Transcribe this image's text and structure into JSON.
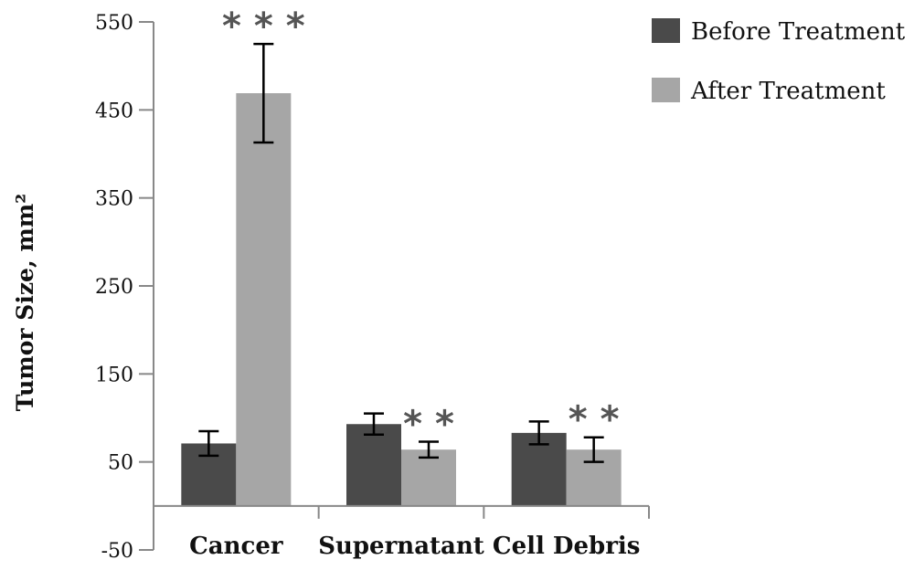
{
  "chart_data": {
    "type": "bar",
    "title": "",
    "xlabel": "",
    "ylabel": "Tumor Size, mm²",
    "ylim": [
      -50,
      550
    ],
    "yticks": [
      -50,
      50,
      150,
      250,
      350,
      450,
      550
    ],
    "categories": [
      "Cancer",
      "Supernatant",
      "Cell Debris"
    ],
    "series": [
      {
        "name": "Before Treatment",
        "values": [
          71,
          93,
          83
        ],
        "errors": [
          14,
          12,
          13
        ],
        "color": "#4a4a4a"
      },
      {
        "name": "After Treatment",
        "values": [
          469,
          64,
          64
        ],
        "errors": [
          56,
          9,
          14
        ],
        "color": "#a6a6a6"
      }
    ],
    "significance": [
      "* * *",
      "* *",
      "* *"
    ],
    "legend_position": "top-right",
    "grid": false
  }
}
